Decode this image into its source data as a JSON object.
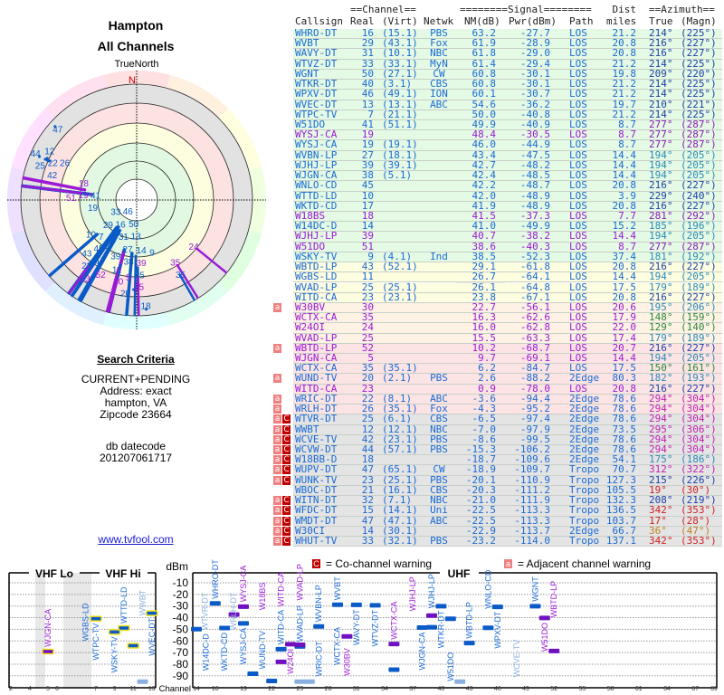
{
  "header": {
    "title": "Hampton",
    "subtitle": "All Channels"
  },
  "polar": {
    "north_label": "TrueNorth",
    "n_marker": "N"
  },
  "criteria": {
    "heading": "Search Criteria",
    "lines": [
      "CURRENT+PENDING",
      "Address: exact",
      "hampton, VA",
      "Zipcode 23664"
    ],
    "db_label": "db datecode",
    "db_value": "201207061717"
  },
  "link": {
    "text": "www.tvfool.com"
  },
  "table": {
    "group_headers": {
      "channel": "==Channel==",
      "signal": "========Signal========",
      "dist": "Dist",
      "azimuth": "==Azimuth=="
    },
    "columns": [
      "Callsign",
      "Real",
      "(Virt)",
      "Netwk",
      "NM(dB)",
      "Pwr(dBm)",
      "Path",
      "miles",
      "True",
      "(Magn)"
    ],
    "rows": [
      [
        "WHRO-DT",
        "16",
        "(15.1)",
        "PBS",
        "63.2",
        "-27.7",
        "LOS",
        "21.2",
        "214°",
        "(225°)",
        "b",
        "g",
        "",
        "db"
      ],
      [
        "WVBT",
        "29",
        "(43.1)",
        "Fox",
        "61.9",
        "-28.9",
        "LOS",
        "20.8",
        "216°",
        "(227°)",
        "b",
        "g",
        "",
        "db"
      ],
      [
        "WAVY-DT",
        "31",
        "(10.1)",
        "NBC",
        "61.8",
        "-29.0",
        "LOS",
        "20.8",
        "216°",
        "(227°)",
        "b",
        "g",
        "",
        "db"
      ],
      [
        "WTVZ-DT",
        "33",
        "(33.1)",
        "MyN",
        "61.4",
        "-29.4",
        "LOS",
        "21.2",
        "214°",
        "(225°)",
        "b",
        "g",
        "",
        "db"
      ],
      [
        "WGNT",
        "50",
        "(27.1)",
        "CW",
        "60.8",
        "-30.1",
        "LOS",
        "19.8",
        "209°",
        "(220°)",
        "b",
        "g",
        "",
        "db"
      ],
      [
        "WTKR-DT",
        "40",
        "(3.1)",
        "CBS",
        "60.8",
        "-30.1",
        "LOS",
        "21.2",
        "214°",
        "(225°)",
        "b",
        "g",
        "",
        "db"
      ],
      [
        "WPXV-DT",
        "46",
        "(49.1)",
        "ION",
        "60.1",
        "-30.7",
        "LOS",
        "21.2",
        "214°",
        "(225°)",
        "b",
        "g",
        "",
        "db"
      ],
      [
        "WVEC-DT",
        "13",
        "(13.1)",
        "ABC",
        "54.6",
        "-36.2",
        "LOS",
        "19.7",
        "210°",
        "(221°)",
        "b",
        "g",
        "",
        "db"
      ],
      [
        "WTPC-TV",
        "7",
        "(21.1)",
        "",
        "50.0",
        "-40.8",
        "LOS",
        "21.2",
        "214°",
        "(225°)",
        "b",
        "g",
        "",
        "db"
      ],
      [
        "W51DO",
        "41",
        "(51.1)",
        "",
        "49.9",
        "-40.9",
        "LOS",
        "8.7",
        "277°",
        "(287°)",
        "b",
        "g",
        "",
        "pu"
      ],
      [
        "WYSJ-CA",
        "19",
        "",
        "",
        "48.4",
        "-30.5",
        "LOS",
        "8.7",
        "277°",
        "(287°)",
        "p",
        "g",
        "",
        "pu"
      ],
      [
        "WYSJ-CA",
        "19",
        "(19.1)",
        "",
        "46.0",
        "-44.9",
        "LOS",
        "8.7",
        "277°",
        "(287°)",
        "b",
        "g",
        "",
        "pu"
      ],
      [
        "WVBN-LP",
        "27",
        "(18.1)",
        "",
        "43.4",
        "-47.5",
        "LOS",
        "14.4",
        "194°",
        "(205°)",
        "b",
        "g",
        "",
        "te"
      ],
      [
        "WJHJ-LP",
        "39",
        "(39.1)",
        "",
        "42.7",
        "-48.2",
        "LOS",
        "14.4",
        "194°",
        "(205°)",
        "b",
        "g",
        "",
        "te"
      ],
      [
        "WJGN-CA",
        "38",
        "(5.1)",
        "",
        "42.4",
        "-48.5",
        "LOS",
        "14.4",
        "194°",
        "(205°)",
        "b",
        "g",
        "",
        "te"
      ],
      [
        "WNLO-CD",
        "45",
        "",
        "",
        "42.2",
        "-48.7",
        "LOS",
        "20.8",
        "216°",
        "(227°)",
        "b",
        "g",
        "",
        "db"
      ],
      [
        "WTTD-LD",
        "10",
        "",
        "",
        "42.0",
        "-48.9",
        "LOS",
        "3.9",
        "229°",
        "(240°)",
        "b",
        "g",
        "",
        "db"
      ],
      [
        "WKTD-CD",
        "17",
        "",
        "",
        "41.9",
        "-48.9",
        "LOS",
        "20.8",
        "216°",
        "(227°)",
        "b",
        "g",
        "",
        "db"
      ],
      [
        "W18BS",
        "18",
        "",
        "",
        "41.5",
        "-37.3",
        "LOS",
        "7.7",
        "281°",
        "(292°)",
        "p",
        "g",
        "",
        "pu"
      ],
      [
        "W14DC-D",
        "14",
        "",
        "",
        "41.0",
        "-49.9",
        "LOS",
        "15.2",
        "185°",
        "(196°)",
        "b",
        "g",
        "",
        "te"
      ],
      [
        "WJHJ-LP",
        "39",
        "",
        "",
        "40.7",
        "-38.2",
        "LOS",
        "14.4",
        "194°",
        "(205°)",
        "p",
        "g",
        "",
        "te"
      ],
      [
        "W51DO",
        "51",
        "",
        "",
        "38.6",
        "-40.3",
        "LOS",
        "8.7",
        "277°",
        "(287°)",
        "p",
        "g",
        "",
        "pu"
      ],
      [
        "WSKY-TV",
        "9",
        "(4.1)",
        "Ind",
        "38.5",
        "-52.3",
        "LOS",
        "37.4",
        "181°",
        "(192°)",
        "b",
        "g",
        "",
        "te"
      ],
      [
        "WBTD-LP",
        "43",
        "(52.1)",
        "",
        "29.1",
        "-61.8",
        "LOS",
        "20.8",
        "216°",
        "(227°)",
        "b",
        "y",
        "",
        "db"
      ],
      [
        "WGBS-LD",
        "11",
        "",
        "",
        "26.7",
        "-64.1",
        "LOS",
        "14.4",
        "194°",
        "(205°)",
        "b",
        "y",
        "",
        "te"
      ],
      [
        "WVAD-LP",
        "25",
        "(25.1)",
        "",
        "26.1",
        "-64.8",
        "LOS",
        "17.5",
        "179°",
        "(189°)",
        "b",
        "y",
        "",
        "te"
      ],
      [
        "WITD-CA",
        "23",
        "(23.1)",
        "",
        "23.8",
        "-67.1",
        "LOS",
        "20.8",
        "216°",
        "(227°)",
        "b",
        "y",
        "",
        "db"
      ],
      [
        "W30BV",
        "30",
        "",
        "",
        "22.7",
        "-56.1",
        "LOS",
        "20.6",
        "195°",
        "(206°)",
        "p",
        "o",
        "a",
        "te"
      ],
      [
        "WCTX-CA",
        "35",
        "",
        "",
        "16.3",
        "-62.6",
        "LOS",
        "17.9",
        "148°",
        "(159°)",
        "p",
        "o",
        "",
        "gr"
      ],
      [
        "W24OI",
        "24",
        "",
        "",
        "16.0",
        "-62.8",
        "LOS",
        "22.0",
        "129°",
        "(140°)",
        "p",
        "o",
        "",
        "gr"
      ],
      [
        "WVAD-LP",
        "25",
        "",
        "",
        "15.5",
        "-63.3",
        "LOS",
        "17.4",
        "179°",
        "(189°)",
        "p",
        "o",
        "",
        "te"
      ],
      [
        "WBTD-LP",
        "52",
        "",
        "",
        "10.2",
        "-68.7",
        "LOS",
        "20.7",
        "216°",
        "(227°)",
        "p",
        "k",
        "a",
        "db"
      ],
      [
        "WJGN-CA",
        "5",
        "",
        "",
        "9.7",
        "-69.1",
        "LOS",
        "14.4",
        "194°",
        "(205°)",
        "p",
        "k",
        "",
        "te"
      ],
      [
        "WCTX-CA",
        "35",
        "(35.1)",
        "",
        "6.2",
        "-84.7",
        "LOS",
        "17.5",
        "150°",
        "(161°)",
        "b",
        "k",
        "",
        "gr"
      ],
      [
        "WUND-TV",
        "20",
        "(2.1)",
        "PBS",
        "2.6",
        "-88.2",
        "2Edge",
        "80.3",
        "182°",
        "(193°)",
        "b",
        "k",
        "a",
        "te"
      ],
      [
        "WITD-CA",
        "23",
        "",
        "",
        "0.9",
        "-78.0",
        "LOS",
        "20.8",
        "216°",
        "(227°)",
        "p",
        "k",
        "",
        "db"
      ],
      [
        "WRIC-DT",
        "22",
        "(8.1)",
        "ABC",
        "-3.6",
        "-94.4",
        "2Edge",
        "78.6",
        "294°",
        "(304°)",
        "b",
        "k",
        "a",
        "ma"
      ],
      [
        "WRLH-DT",
        "26",
        "(35.1)",
        "Fox",
        "-4.3",
        "-95.2",
        "2Edge",
        "78.6",
        "294°",
        "(304°)",
        "b",
        "k",
        "a",
        "ma"
      ],
      [
        "WTVR-DT",
        "25",
        "(6.1)",
        "CBS",
        "-6.5",
        "-97.4",
        "2Edge",
        "78.6",
        "294°",
        "(304°)",
        "b",
        "x",
        "ac",
        "ma"
      ],
      [
        "WWBT",
        "12",
        "(12.1)",
        "NBC",
        "-7.0",
        "-97.9",
        "2Edge",
        "73.5",
        "295°",
        "(306°)",
        "b",
        "x",
        "ac",
        "ma"
      ],
      [
        "WCVE-TV",
        "42",
        "(23.1)",
        "PBS",
        "-8.6",
        "-99.5",
        "2Edge",
        "78.6",
        "294°",
        "(304°)",
        "b",
        "x",
        "ac",
        "ma"
      ],
      [
        "WCVW-DT",
        "44",
        "(57.1)",
        "PBS",
        "-15.3",
        "-106.2",
        "2Edge",
        "78.6",
        "294°",
        "(304°)",
        "b",
        "x",
        "ac",
        "ma"
      ],
      [
        "W18BB-D",
        "18",
        "",
        "",
        "-18.7",
        "-109.6",
        "2Edge",
        "54.1",
        "175°",
        "(186°)",
        "b",
        "x",
        "ac",
        "te"
      ],
      [
        "WUPV-DT",
        "47",
        "(65.1)",
        "CW",
        "-18.9",
        "-109.7",
        "Tropo",
        "70.7",
        "312°",
        "(322°)",
        "b",
        "x",
        "ac",
        "ma"
      ],
      [
        "WUNK-TV",
        "23",
        "(25.1)",
        "PBS",
        "-20.1",
        "-110.9",
        "Tropo",
        "127.3",
        "215°",
        "(226°)",
        "b",
        "x",
        "ac",
        "db"
      ],
      [
        "WBOC-DT",
        "21",
        "(16.1)",
        "CBS",
        "-20.3",
        "-111.2",
        "Tropo",
        "105.5",
        "19°",
        "(30°)",
        "b",
        "x",
        "",
        "re"
      ],
      [
        "WITN-DT",
        "32",
        "(7.1)",
        "NBC",
        "-21.0",
        "-111.9",
        "Tropo",
        "132.3",
        "208°",
        "(219°)",
        "b",
        "x",
        "ac",
        "db"
      ],
      [
        "WFDC-DT",
        "15",
        "(14.1)",
        "Uni",
        "-22.5",
        "-113.3",
        "Tropo",
        "136.5",
        "342°",
        "(353°)",
        "b",
        "x",
        "ac",
        "re"
      ],
      [
        "WMDT-DT",
        "47",
        "(47.1)",
        "ABC",
        "-22.5",
        "-113.3",
        "Tropo",
        "103.7",
        "17°",
        "(28°)",
        "b",
        "x",
        "ac",
        "re"
      ],
      [
        "W30CI",
        "14",
        "(30.1)",
        "",
        "-22.9",
        "-113.7",
        "2Edge",
        "66.7",
        "36°",
        "(47°)",
        "b",
        "x",
        "ac",
        "or"
      ],
      [
        "WHUT-TV",
        "33",
        "(32.1)",
        "PBS",
        "-23.2",
        "-114.0",
        "Tropo",
        "137.1",
        "342°",
        "(353°)",
        "b",
        "x",
        "ac",
        "re"
      ]
    ]
  },
  "warnings": {
    "adjacent_glyph": "a",
    "cochannel_glyph": "C"
  },
  "colors": {
    "text_blue": "#1a6ad6",
    "text_purple": "#9a1ad6",
    "row_green": "#e4fae4",
    "row_yellow": "#fdfde0",
    "row_orange": "#fdf2e4",
    "row_pink": "#fde4e4",
    "row_gray": "#e4e4e4",
    "az": {
      "db": "#1c3fa8",
      "pu": "#8a1ab8",
      "te": "#2a8ab8",
      "gr": "#2a8a3a",
      "ma": "#c020b0",
      "re": "#d02020",
      "or": "#c08020"
    }
  },
  "spectrum": {
    "vhf_lo_label": "VHF Lo",
    "vhf_hi_label": "VHF Hi",
    "uhf_label": "UHF",
    "dbm_label": "dBm",
    "channel_label": "Channel",
    "dbm_ticks": [
      "-10",
      "-20",
      "-30",
      "-40",
      "-50",
      "-60",
      "-70",
      "-80",
      "-90"
    ],
    "vhf_ticks": [
      "2",
      "4",
      "5",
      "6",
      "7",
      "9",
      "11",
      "13"
    ],
    "uhf_ticks": [
      "14",
      "16",
      "19",
      "22",
      "25",
      "28",
      "31",
      "34",
      "37",
      "40",
      "43",
      "46",
      "49",
      "52",
      "55",
      "58",
      "61",
      "64",
      "67",
      "69"
    ],
    "legend": {
      "cochannel": "= Co-channel warning",
      "adjacent": "= Adjacent channel warning"
    }
  }
}
